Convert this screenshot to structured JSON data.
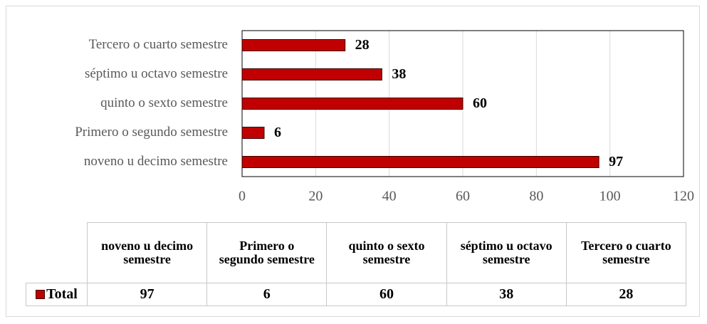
{
  "chart_data": {
    "type": "bar",
    "orientation": "horizontal",
    "categories": [
      "noveno u decimo semestre",
      "Primero o segundo semestre",
      "quinto o sexto semestre",
      "séptimo u octavo semestre",
      "Tercero o cuarto semestre"
    ],
    "series": [
      {
        "name": "Total",
        "color": "#c00000",
        "values": [
          97,
          6,
          60,
          38,
          28
        ]
      }
    ],
    "xlim": [
      0,
      120
    ],
    "xticks": [
      0,
      20,
      40,
      60,
      80,
      100,
      120
    ],
    "grid": true,
    "data_table": true
  }
}
